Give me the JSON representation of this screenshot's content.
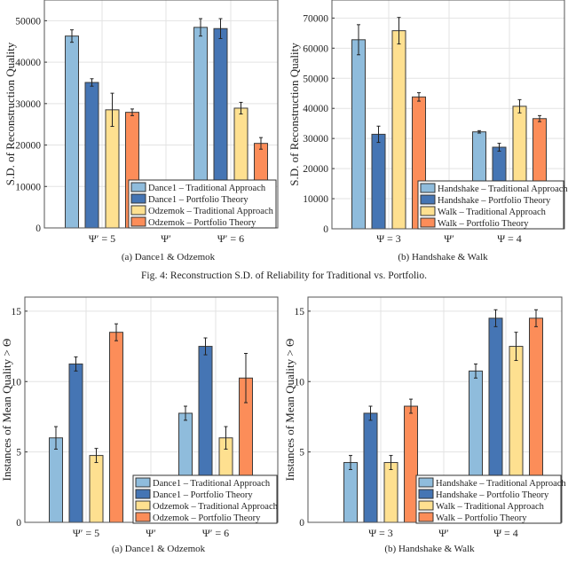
{
  "figure_caption": "Fig. 4: Reconstruction S.D. of Reliability for Traditional vs. Portfolio.",
  "colors": {
    "traditional_1": "#8fbcdc",
    "portfolio_1": "#4575b4",
    "traditional_2": "#fee090",
    "portfolio_2": "#fc8d59"
  },
  "chart_data": [
    {
      "type": "bar",
      "caption": "(a) Dance1 & Odzemok",
      "ylabel": "S.D. of Reconstruction Quality",
      "categories": [
        "Ψ′ = 5",
        "Ψ′",
        "Ψ′ = 6"
      ],
      "yticks": [
        "0",
        "10000",
        "20000",
        "30000",
        "40000",
        "50000"
      ],
      "ylim": [
        0,
        55000
      ],
      "grid": true,
      "legend": "bottom-right",
      "series": [
        {
          "name": "Dance1 – Traditional Approach",
          "values": [
            46300,
            null,
            48400
          ],
          "errors": [
            1500,
            null,
            2100
          ]
        },
        {
          "name": "Dance1 – Portfolio Theory",
          "values": [
            35100,
            null,
            48100
          ],
          "errors": [
            900,
            null,
            2400
          ]
        },
        {
          "name": "Odzemok – Traditional Approach",
          "values": [
            28500,
            null,
            28900
          ],
          "errors": [
            4000,
            null,
            1400
          ]
        },
        {
          "name": "Odzemok – Portfolio Theory",
          "values": [
            27900,
            null,
            20400
          ],
          "errors": [
            800,
            null,
            1400
          ]
        }
      ]
    },
    {
      "type": "bar",
      "caption": "(b) Handshake & Walk",
      "ylabel": "S.D. of Reconstruction Quality",
      "categories": [
        "Ψ = 3",
        "Ψ′",
        "Ψ = 4"
      ],
      "yticks": [
        "0",
        "10000",
        "20000",
        "30000",
        "40000",
        "50000",
        "60000",
        "70000"
      ],
      "ylim": [
        0,
        76000
      ],
      "grid": true,
      "legend": "bottom-right",
      "series": [
        {
          "name": "Handshake – Traditional Approach",
          "values": [
            62800,
            null,
            32200
          ],
          "errors": [
            5000,
            null,
            400
          ]
        },
        {
          "name": "Handshake – Portfolio Theory",
          "values": [
            31400,
            null,
            27100
          ],
          "errors": [
            2700,
            null,
            1300
          ]
        },
        {
          "name": "Walk – Traditional Approach",
          "values": [
            65800,
            null,
            40700
          ],
          "errors": [
            4400,
            null,
            2200
          ]
        },
        {
          "name": "Walk – Portfolio Theory",
          "values": [
            43800,
            null,
            36600
          ],
          "errors": [
            1400,
            null,
            1000
          ]
        }
      ]
    },
    {
      "type": "bar",
      "caption": "(a) Dance1 & Odzemok",
      "ylabel": "Instances of Mean Quality  > Θ",
      "categories": [
        "Ψ′ = 5",
        "Ψ′",
        "Ψ′ = 6"
      ],
      "yticks": [
        "0",
        "5",
        "10",
        "15"
      ],
      "ylim": [
        0,
        16
      ],
      "grid": true,
      "legend": "bottom-right",
      "series": [
        {
          "name": "Dance1 – Traditional Approach",
          "values": [
            6.0,
            null,
            7.75
          ],
          "errors": [
            0.8,
            null,
            0.5
          ]
        },
        {
          "name": "Dance1 – Portfolio Theory",
          "values": [
            11.25,
            null,
            12.5
          ],
          "errors": [
            0.5,
            null,
            0.6
          ]
        },
        {
          "name": "Odzemok – Traditional Approach",
          "values": [
            4.75,
            null,
            6.0
          ],
          "errors": [
            0.5,
            null,
            0.8
          ]
        },
        {
          "name": "Odzemok – Portfolio Theory",
          "values": [
            13.5,
            null,
            10.25
          ],
          "errors": [
            0.6,
            null,
            1.75
          ]
        }
      ]
    },
    {
      "type": "bar",
      "caption": "(b) Handshake & Walk",
      "ylabel": "Instances of Mean Quality  > Θ",
      "categories": [
        "Ψ = 3",
        "Ψ′",
        "Ψ = 4"
      ],
      "yticks": [
        "0",
        "5",
        "10",
        "15"
      ],
      "ylim": [
        0,
        16
      ],
      "grid": true,
      "legend": "bottom-right",
      "series": [
        {
          "name": "Handshake – Traditional Approach",
          "values": [
            4.25,
            null,
            10.75
          ],
          "errors": [
            0.5,
            null,
            0.5
          ]
        },
        {
          "name": "Handshake – Portfolio Theory",
          "values": [
            7.75,
            null,
            14.5
          ],
          "errors": [
            0.5,
            null,
            0.6
          ]
        },
        {
          "name": "Walk – Traditional Approach",
          "values": [
            4.25,
            null,
            12.5
          ],
          "errors": [
            0.5,
            null,
            1.0
          ]
        },
        {
          "name": "Walk – Portfolio Theory",
          "values": [
            8.25,
            null,
            14.5
          ],
          "errors": [
            0.5,
            null,
            0.6
          ]
        }
      ]
    }
  ]
}
